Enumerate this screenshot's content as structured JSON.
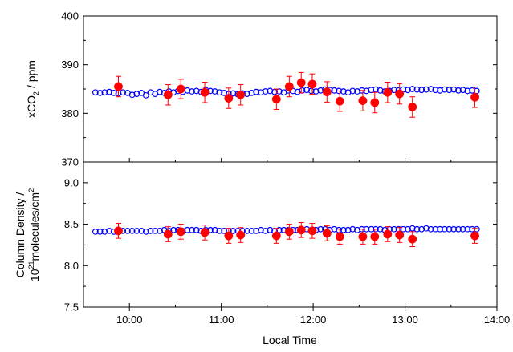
{
  "chart_data": [
    {
      "type": "scatter",
      "ylabel_parts": [
        "xCO",
        "2",
        " / ppm"
      ],
      "ylim": [
        370,
        400
      ],
      "yticks": [
        370,
        380,
        390,
        400
      ],
      "ytick_labels": [
        "370",
        "380",
        "390",
        "400"
      ],
      "xlim": [
        9.5,
        14.0
      ],
      "series": [
        {
          "marker": "open-circle",
          "color": "#0000ff",
          "x": [
            9.63,
            9.68,
            9.73,
            9.78,
            9.83,
            9.88,
            9.93,
            9.98,
            10.03,
            10.08,
            10.13,
            10.18,
            10.23,
            10.28,
            10.33,
            10.38,
            10.43,
            10.48,
            10.53,
            10.58,
            10.63,
            10.68,
            10.73,
            10.78,
            10.83,
            10.88,
            10.93,
            10.98,
            11.03,
            11.08,
            11.13,
            11.18,
            11.23,
            11.28,
            11.33,
            11.38,
            11.43,
            11.48,
            11.53,
            11.58,
            11.63,
            11.68,
            11.73,
            11.78,
            11.83,
            11.88,
            11.93,
            11.98,
            12.03,
            12.08,
            12.13,
            12.18,
            12.23,
            12.28,
            12.33,
            12.38,
            12.43,
            12.48,
            12.53,
            12.58,
            12.63,
            12.68,
            12.73,
            12.78,
            12.83,
            12.88,
            12.93,
            12.98,
            13.03,
            13.08,
            13.13,
            13.18,
            13.23,
            13.28,
            13.33,
            13.38,
            13.43,
            13.48,
            13.53,
            13.58,
            13.63,
            13.68,
            13.73,
            13.78
          ],
          "y": [
            384.3,
            384.2,
            384.3,
            384.4,
            384.2,
            384.1,
            384.3,
            384.2,
            383.8,
            384.0,
            384.2,
            383.7,
            384.3,
            384.0,
            384.4,
            384.2,
            384.5,
            384.3,
            384.6,
            384.4,
            384.7,
            384.5,
            384.6,
            384.4,
            384.8,
            384.6,
            384.5,
            384.3,
            384.2,
            384.0,
            384.1,
            383.9,
            384.1,
            384.0,
            384.2,
            384.4,
            384.3,
            384.5,
            384.6,
            384.4,
            384.5,
            384.3,
            384.7,
            384.6,
            384.4,
            384.7,
            384.8,
            384.6,
            384.5,
            384.7,
            384.9,
            384.8,
            384.7,
            384.6,
            384.5,
            384.3,
            384.6,
            384.5,
            384.7,
            384.6,
            384.8,
            384.9,
            384.7,
            384.5,
            384.6,
            384.8,
            384.7,
            384.9,
            384.8,
            385.0,
            384.9,
            384.8,
            384.9,
            385.0,
            384.8,
            384.7,
            384.9,
            384.8,
            384.9,
            384.7,
            384.8,
            384.6,
            384.7,
            384.6
          ]
        },
        {
          "marker": "filled-circle",
          "color": "#ff0000",
          "x": [
            9.88,
            10.42,
            10.56,
            10.82,
            11.08,
            11.21,
            11.6,
            11.74,
            11.87,
            11.99,
            12.15,
            12.29,
            12.54,
            12.67,
            12.81,
            12.94,
            13.08,
            13.76
          ],
          "y": [
            385.5,
            383.8,
            385.0,
            384.3,
            383.1,
            383.8,
            382.9,
            385.5,
            386.3,
            386.0,
            384.4,
            382.5,
            382.6,
            382.2,
            384.3,
            384.0,
            381.3,
            383.3
          ],
          "err": [
            2.1,
            2.1,
            2.0,
            2.1,
            2.1,
            2.1,
            2.1,
            2.1,
            2.1,
            2.1,
            2.1,
            2.1,
            2.1,
            2.1,
            2.1,
            2.1,
            2.1,
            2.1
          ]
        }
      ]
    },
    {
      "type": "scatter",
      "ylabel_line1": "Column Density /",
      "ylabel_line2_parts": [
        "10",
        "21",
        "molecules/cm",
        "2"
      ],
      "ylim": [
        7.5,
        9.25
      ],
      "yticks": [
        7.5,
        8.0,
        8.5,
        9.0
      ],
      "ytick_labels": [
        "7.5",
        "8.0",
        "8.5",
        "9.0"
      ],
      "xlim": [
        9.5,
        14.0
      ],
      "series": [
        {
          "marker": "open-circle",
          "color": "#0000ff",
          "x": [
            9.63,
            9.68,
            9.73,
            9.78,
            9.83,
            9.88,
            9.93,
            9.98,
            10.03,
            10.08,
            10.13,
            10.18,
            10.23,
            10.28,
            10.33,
            10.38,
            10.43,
            10.48,
            10.53,
            10.58,
            10.63,
            10.68,
            10.73,
            10.78,
            10.83,
            10.88,
            10.93,
            10.98,
            11.03,
            11.08,
            11.13,
            11.18,
            11.23,
            11.28,
            11.33,
            11.38,
            11.43,
            11.48,
            11.53,
            11.58,
            11.63,
            11.68,
            11.73,
            11.78,
            11.83,
            11.88,
            11.93,
            11.98,
            12.03,
            12.08,
            12.13,
            12.18,
            12.23,
            12.28,
            12.33,
            12.38,
            12.43,
            12.48,
            12.53,
            12.58,
            12.63,
            12.68,
            12.73,
            12.78,
            12.83,
            12.88,
            12.93,
            12.98,
            13.03,
            13.08,
            13.13,
            13.18,
            13.23,
            13.28,
            13.33,
            13.38,
            13.43,
            13.48,
            13.53,
            13.58,
            13.63,
            13.68,
            13.73,
            13.78
          ],
          "y": [
            8.41,
            8.41,
            8.41,
            8.42,
            8.41,
            8.42,
            8.42,
            8.42,
            8.42,
            8.42,
            8.42,
            8.41,
            8.42,
            8.42,
            8.42,
            8.43,
            8.42,
            8.43,
            8.43,
            8.42,
            8.43,
            8.43,
            8.43,
            8.42,
            8.43,
            8.43,
            8.43,
            8.42,
            8.42,
            8.42,
            8.42,
            8.42,
            8.42,
            8.42,
            8.42,
            8.42,
            8.43,
            8.42,
            8.43,
            8.42,
            8.43,
            8.43,
            8.43,
            8.43,
            8.43,
            8.43,
            8.44,
            8.43,
            8.43,
            8.44,
            8.44,
            8.43,
            8.44,
            8.43,
            8.43,
            8.43,
            8.44,
            8.43,
            8.44,
            8.44,
            8.44,
            8.44,
            8.44,
            8.43,
            8.44,
            8.44,
            8.44,
            8.44,
            8.44,
            8.45,
            8.44,
            8.44,
            8.45,
            8.44,
            8.44,
            8.44,
            8.44,
            8.44,
            8.44,
            8.44,
            8.44,
            8.44,
            8.44,
            8.44
          ]
        },
        {
          "marker": "filled-circle",
          "color": "#ff0000",
          "x": [
            9.88,
            10.42,
            10.56,
            10.82,
            11.08,
            11.21,
            11.6,
            11.74,
            11.87,
            11.99,
            12.15,
            12.29,
            12.54,
            12.67,
            12.81,
            12.94,
            13.08,
            13.76
          ],
          "y": [
            8.42,
            8.38,
            8.41,
            8.4,
            8.36,
            8.37,
            8.36,
            8.41,
            8.43,
            8.42,
            8.39,
            8.35,
            8.35,
            8.35,
            8.38,
            8.37,
            8.32,
            8.36
          ],
          "err": [
            0.09,
            0.09,
            0.09,
            0.09,
            0.09,
            0.09,
            0.09,
            0.09,
            0.09,
            0.09,
            0.09,
            0.09,
            0.09,
            0.09,
            0.09,
            0.09,
            0.09,
            0.09
          ]
        }
      ]
    }
  ],
  "x_axis": {
    "label": "Local Time",
    "ticks": [
      10,
      11,
      12,
      13,
      14
    ],
    "tick_labels": [
      "10:00",
      "11:00",
      "12:00",
      "13:00",
      "14:00"
    ],
    "minor_ticks": [
      9.5,
      10.5,
      11.5,
      12.5,
      13.5
    ]
  }
}
